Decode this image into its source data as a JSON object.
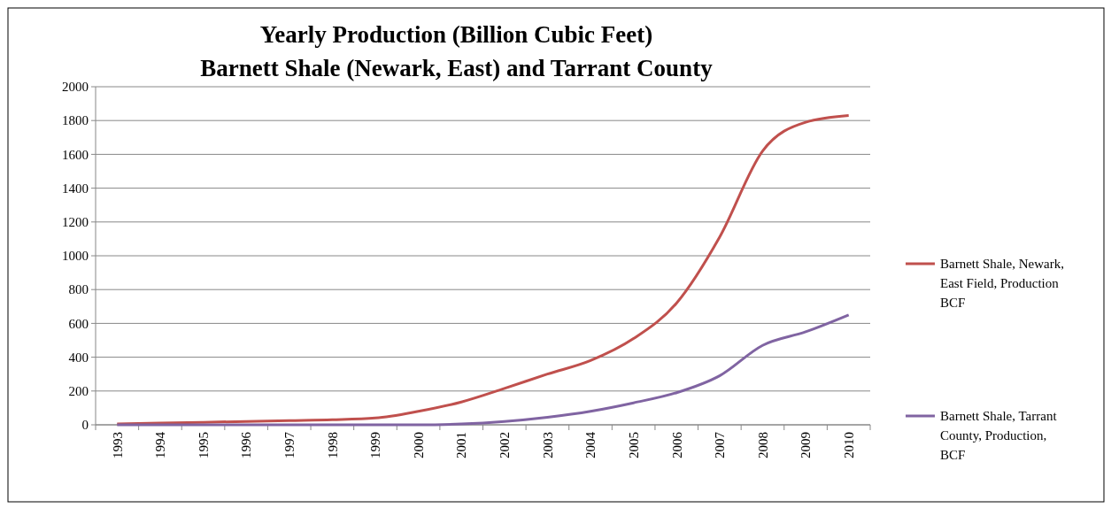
{
  "chart_data": {
    "type": "line",
    "title": "Yearly Production (Billion Cubic Feet)",
    "subtitle": "Barnett Shale (Newark, East) and Tarrant County",
    "categories": [
      "1993",
      "1994",
      "1995",
      "1996",
      "1997",
      "1998",
      "1999",
      "2000",
      "2001",
      "2002",
      "2003",
      "2004",
      "2005",
      "2006",
      "2007",
      "2008",
      "2009",
      "2010"
    ],
    "series": [
      {
        "name": "Barnett Shale, Newark, East Field, Production BCF",
        "color": "#c0504d",
        "values": [
          5,
          10,
          15,
          20,
          25,
          30,
          40,
          80,
          135,
          215,
          300,
          380,
          510,
          720,
          1110,
          1620,
          1790,
          1830
        ]
      },
      {
        "name": "Barnett Shale, Tarrant County, Production, BCF",
        "color": "#8064a2",
        "values": [
          0,
          0,
          0,
          0,
          0,
          0,
          0,
          0,
          5,
          20,
          45,
          80,
          130,
          190,
          290,
          470,
          550,
          650
        ]
      }
    ],
    "ylim": [
      0,
      2000
    ],
    "yticks": [
      0,
      200,
      400,
      600,
      800,
      1000,
      1200,
      1400,
      1600,
      1800,
      2000
    ],
    "grid": "y",
    "legend": "right",
    "marker": "none",
    "line_style": "solid"
  }
}
